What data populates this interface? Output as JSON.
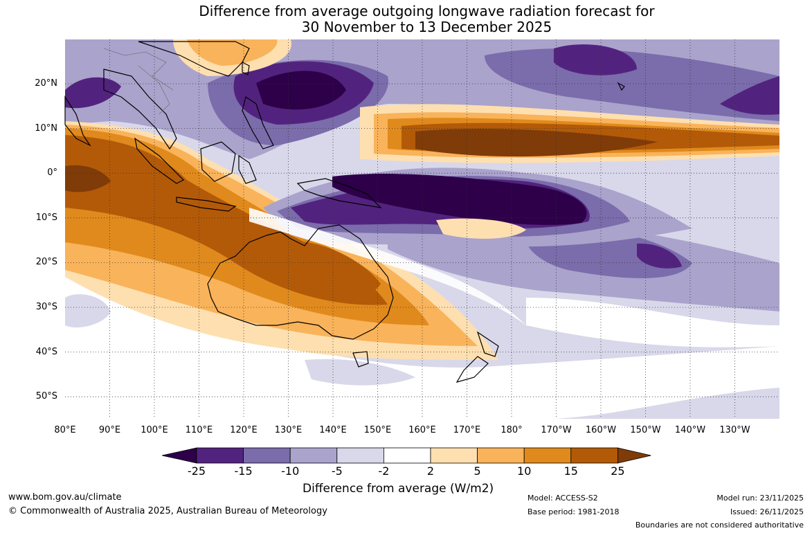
{
  "title_line1": "Difference from average outgoing longwave radiation forecast for",
  "title_line2": "30 November to 13 December 2025",
  "lat_labels": [
    "20°N",
    "10°N",
    "0°",
    "10°S",
    "20°S",
    "30°S",
    "40°S",
    "50°S"
  ],
  "lon_labels": [
    "80°E",
    "90°E",
    "100°E",
    "110°E",
    "120°E",
    "130°E",
    "140°E",
    "150°E",
    "160°E",
    "170°E",
    "180°",
    "170°W",
    "160°W",
    "150°W",
    "140°W",
    "130°W"
  ],
  "colorbar": {
    "ticks": [
      "-25",
      "-15",
      "-10",
      "-5",
      "-2",
      "2",
      "5",
      "10",
      "15",
      "25"
    ],
    "colors": [
      "#2d0049",
      "#52237e",
      "#7b6cab",
      "#aaa3cc",
      "#d8d8ea",
      "#ffffff",
      "#fedfb0",
      "#f9b35a",
      "#e08a1d",
      "#b35a08",
      "#7f3b08"
    ],
    "title": "Difference from average (W/m2)"
  },
  "footer": {
    "url": "www.bom.gov.au/climate",
    "copyright": "© Commonwealth of Australia 2025, Australian Bureau of Meteorology",
    "model": "Model: ACCESS-S2",
    "base_period": "Base period: 1981-2018",
    "model_run": "Model run: 23/11/2025",
    "issued": "Issued: 26/11/2025",
    "disclaimer": "Boundaries are not considered authoritative"
  }
}
